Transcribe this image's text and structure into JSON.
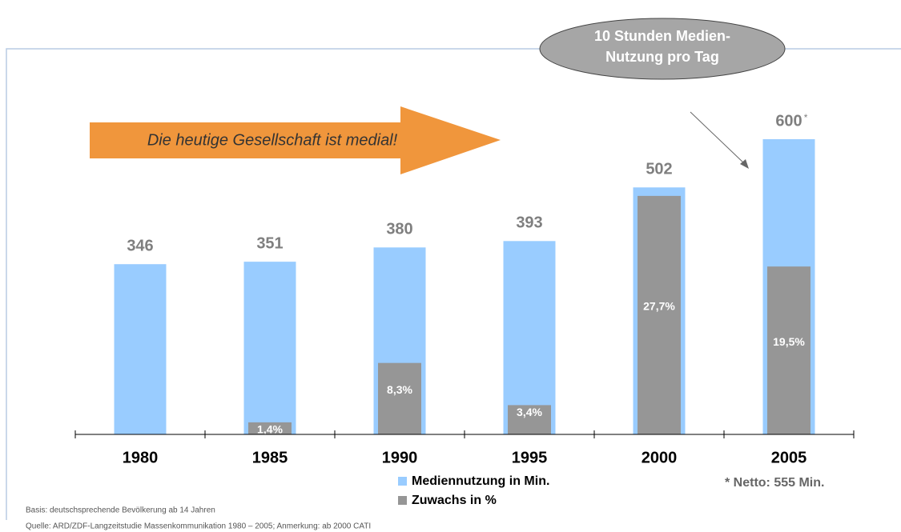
{
  "chart_data": {
    "type": "bar",
    "categories": [
      "1980",
      "1985",
      "1990",
      "1995",
      "2000",
      "2005"
    ],
    "series": [
      {
        "name": "Mediennutzung in Min.",
        "color": "#99ccff",
        "values": [
          346,
          351,
          380,
          393,
          502,
          600
        ]
      },
      {
        "name": "Zuwachs in %",
        "color": "#969696",
        "axis": "y2",
        "values": [
          null,
          1.4,
          8.3,
          3.4,
          27.7,
          19.5
        ],
        "value_labels": [
          null,
          "1,4%",
          "8,3%",
          "3,4%",
          "27,7%",
          "19,5%"
        ]
      }
    ],
    "ylim": [
      0,
      700
    ],
    "y2lim": [
      0,
      40
    ],
    "annotations": {
      "callout": [
        "10 Stunden Medien-",
        "Nutzung pro Tag"
      ],
      "arrow": "Die heutige Gesellschaft ist medial!",
      "asterisk": "*",
      "footnote": "* Netto: 555 Min.",
      "basis": "Basis: deutschsprechende Bevölkerung ab 14 Jahren",
      "source": "Quelle: ARD/ZDF-Langzeitstudie Massenkommunikation 1980 – 2005; Anmerkung: ab 2000 CATI"
    }
  }
}
